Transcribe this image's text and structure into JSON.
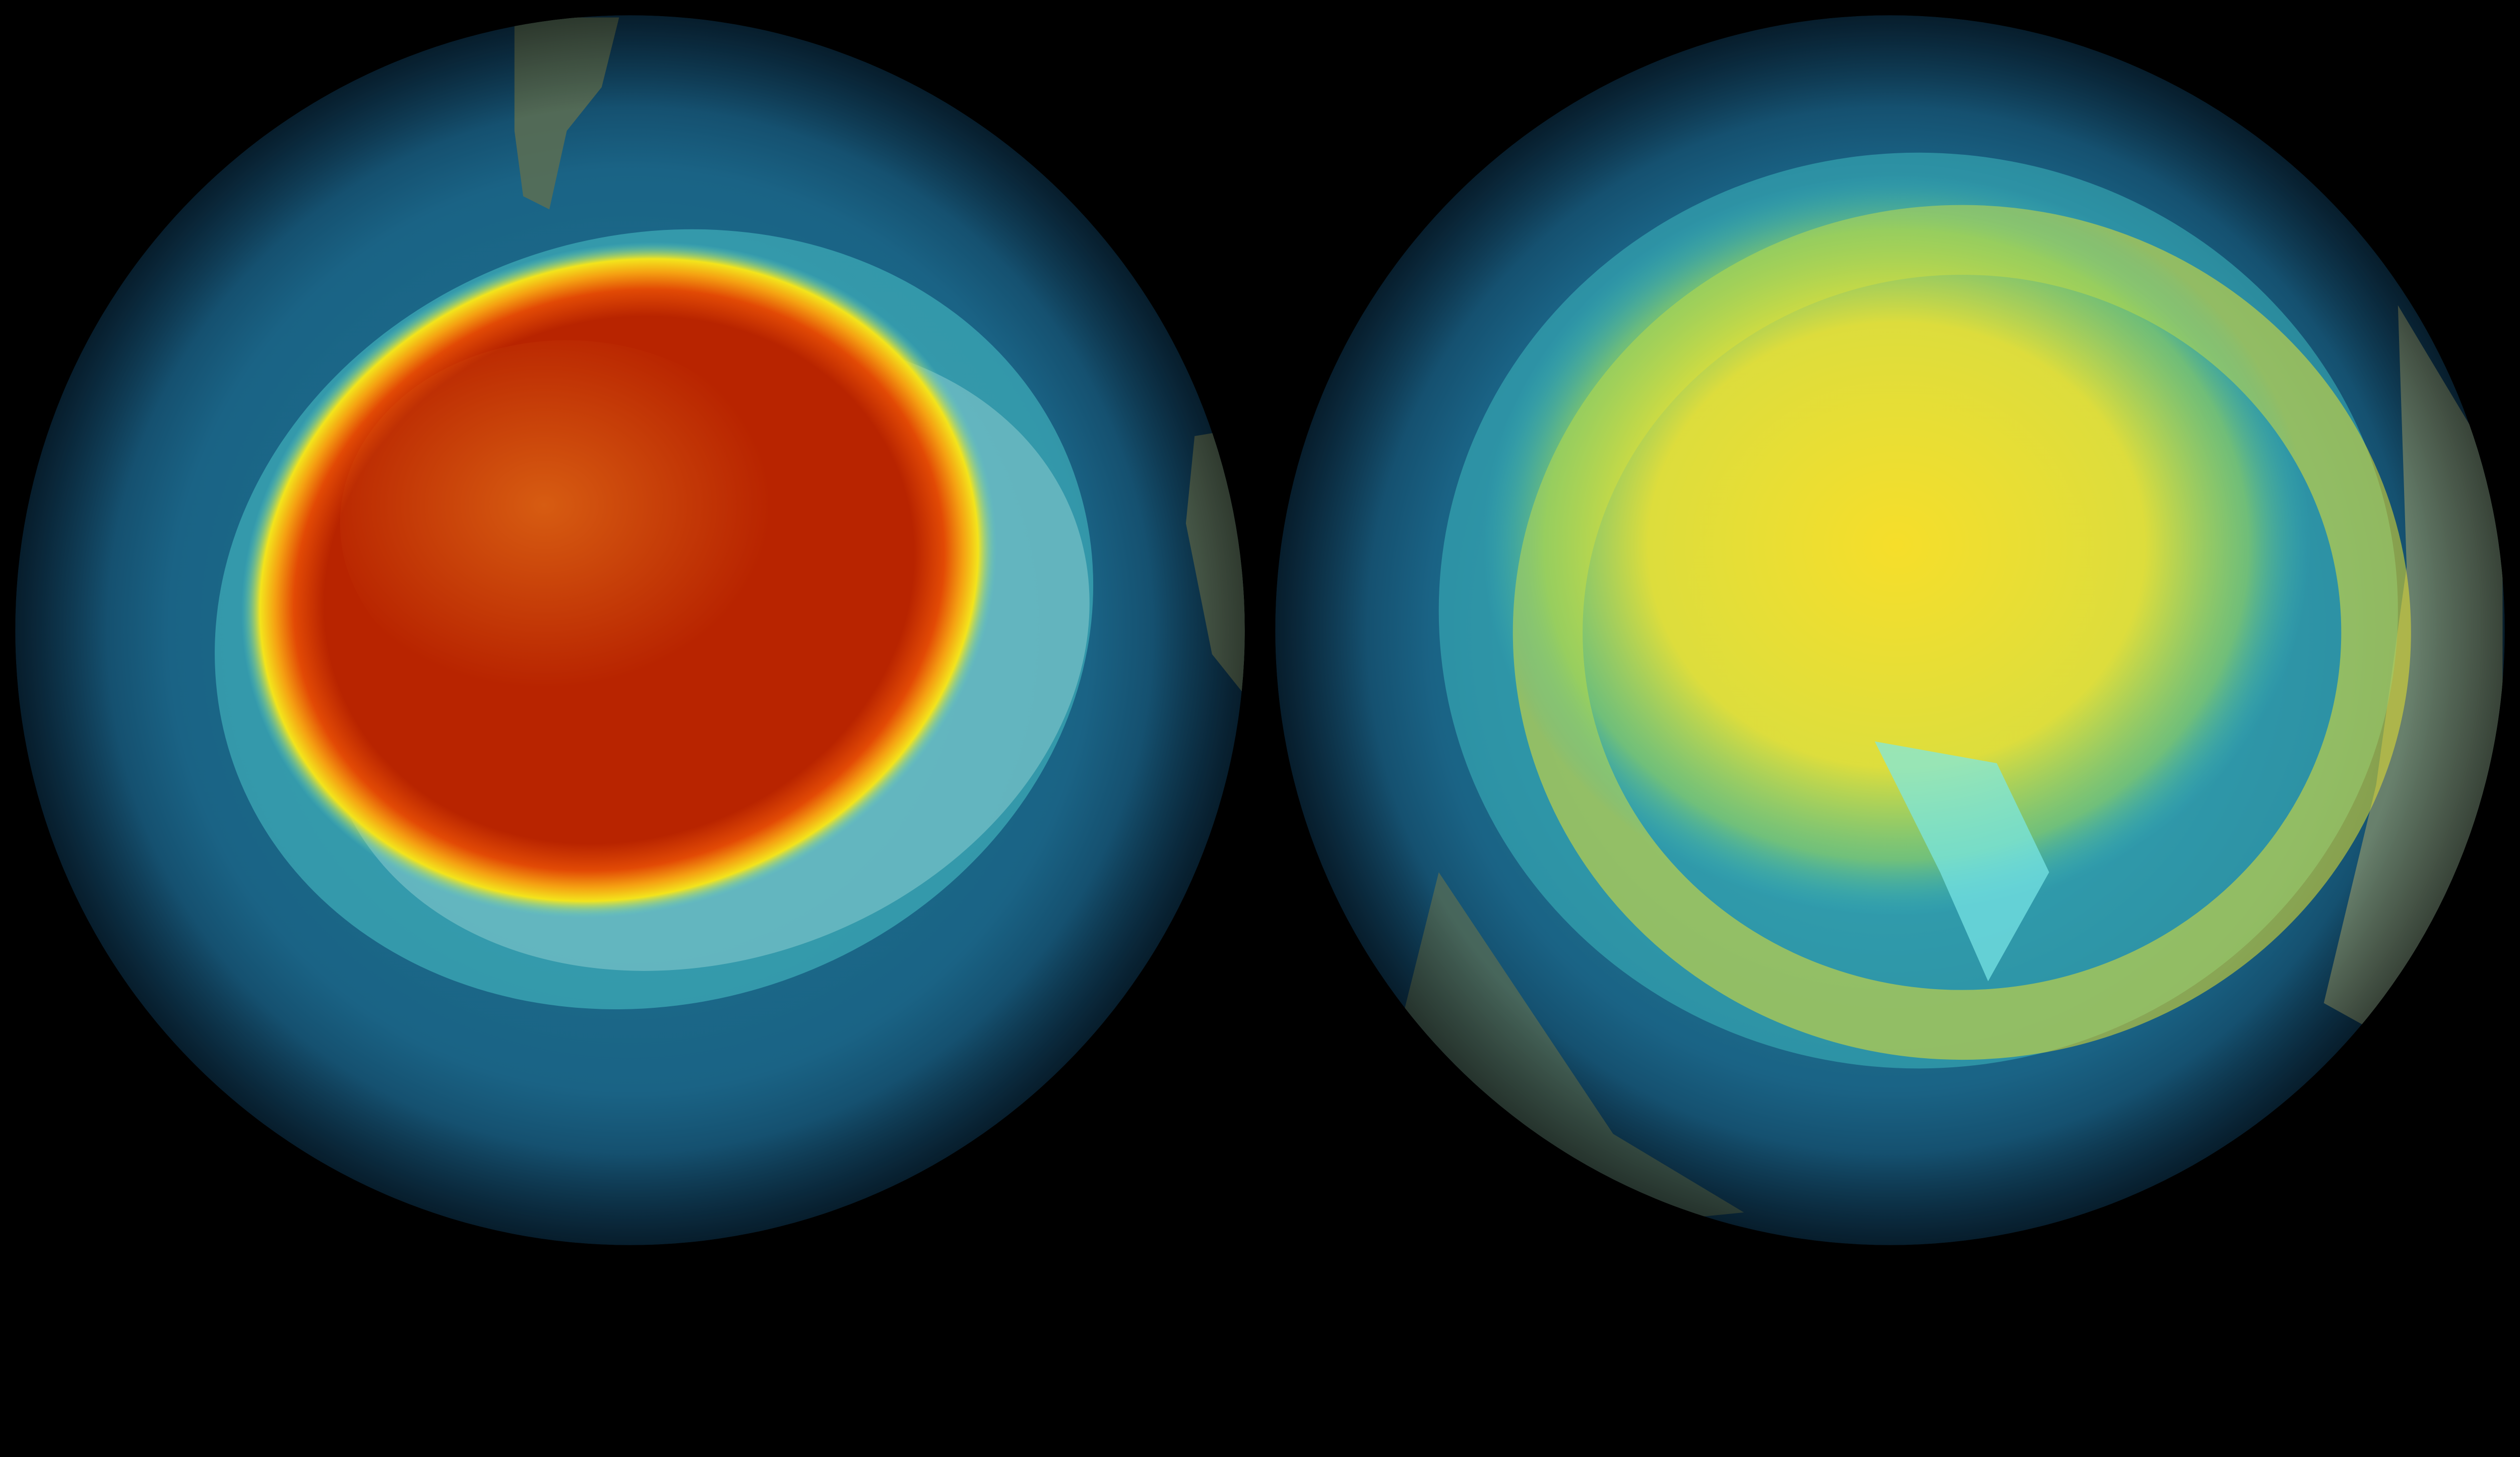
{
  "colors": {
    "background": "#000000",
    "ocean": "#1a5f80",
    "low_band": "#2fb8c8",
    "mid_band": "#f2e21a",
    "high_core": "#b82400",
    "land": "#6b7a5c",
    "ice": "#cfe6ea"
  }
}
